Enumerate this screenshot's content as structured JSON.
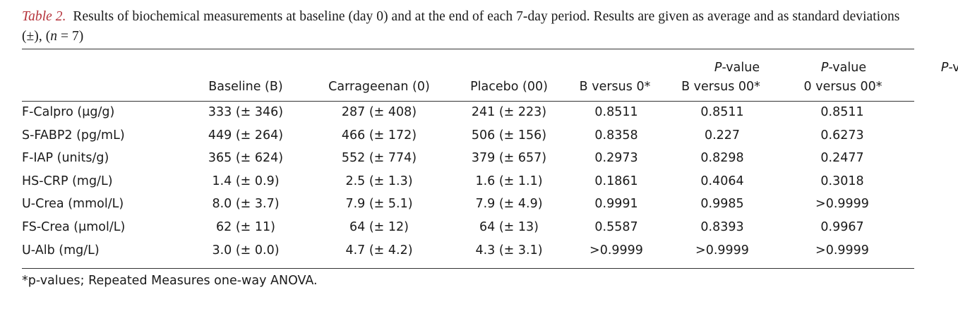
{
  "caption": {
    "label": "Table 2.",
    "text_before_n": "Results of biochemical measurements at baseline (day 0) and at the end of each 7-day period. Results are given as average and as standard deviations (±), (",
    "n_symbol": "n",
    "text_after_n": " = 7)"
  },
  "header": {
    "baseline": "Baseline (B)",
    "carrageenan": "Carrageenan (0)",
    "placebo": "Placebo (00)",
    "pvalue_prefix": "P",
    "pvalue_suffix": "-value",
    "p1_sub": "B versus 0*",
    "p2_sub": "B versus 00*",
    "p3_sub": "0 versus 00*"
  },
  "rows": [
    {
      "name": "F-Calpro (μg/g)",
      "baseline": "333 (± 346)",
      "carrageenan": "287 (± 408)",
      "placebo": "241 (± 223)",
      "p1": "0.8511",
      "p2": "0.8511",
      "p3": "0.8511"
    },
    {
      "name": "S-FABP2 (pg/mL)",
      "baseline": "449 (± 264)",
      "carrageenan": "466 (± 172)",
      "placebo": "506 (± 156)",
      "p1": "0.8358",
      "p2": "0.227",
      "p3": "0.6273"
    },
    {
      "name": "F-IAP (units/g)",
      "baseline": "365 (± 624)",
      "carrageenan": "552 (± 774)",
      "placebo": "379 (± 657)",
      "p1": "0.2973",
      "p2": "0.8298",
      "p3": "0.2477"
    },
    {
      "name": "HS-CRP (mg/L)",
      "baseline": "1.4 (± 0.9)",
      "carrageenan": "2.5 (± 1.3)",
      "placebo": "1.6 (± 1.1)",
      "p1": "0.1861",
      "p2": "0.4064",
      "p3": "0.3018"
    },
    {
      "name": "U-Crea (mmol/L)",
      "baseline": "8.0 (± 3.7)",
      "carrageenan": "7.9 (± 5.1)",
      "placebo": "7.9 (± 4.9)",
      "p1": "0.9991",
      "p2": "0.9985",
      "p3": ">0.9999"
    },
    {
      "name": "FS-Crea (μmol/L)",
      "baseline": "62 (± 11)",
      "carrageenan": "64 (± 12)",
      "placebo": "64 (± 13)",
      "p1": "0.5587",
      "p2": "0.8393",
      "p3": "0.9967"
    },
    {
      "name": "U-Alb (mg/L)",
      "baseline": "3.0 (± 0.0)",
      "carrageenan": "4.7 (± 4.2)",
      "placebo": "4.3 (± 3.1)",
      "p1": ">0.9999",
      "p2": ">0.9999",
      "p3": ">0.9999"
    }
  ],
  "footnote": "*p-values; Repeated Measures one-way ANOVA."
}
